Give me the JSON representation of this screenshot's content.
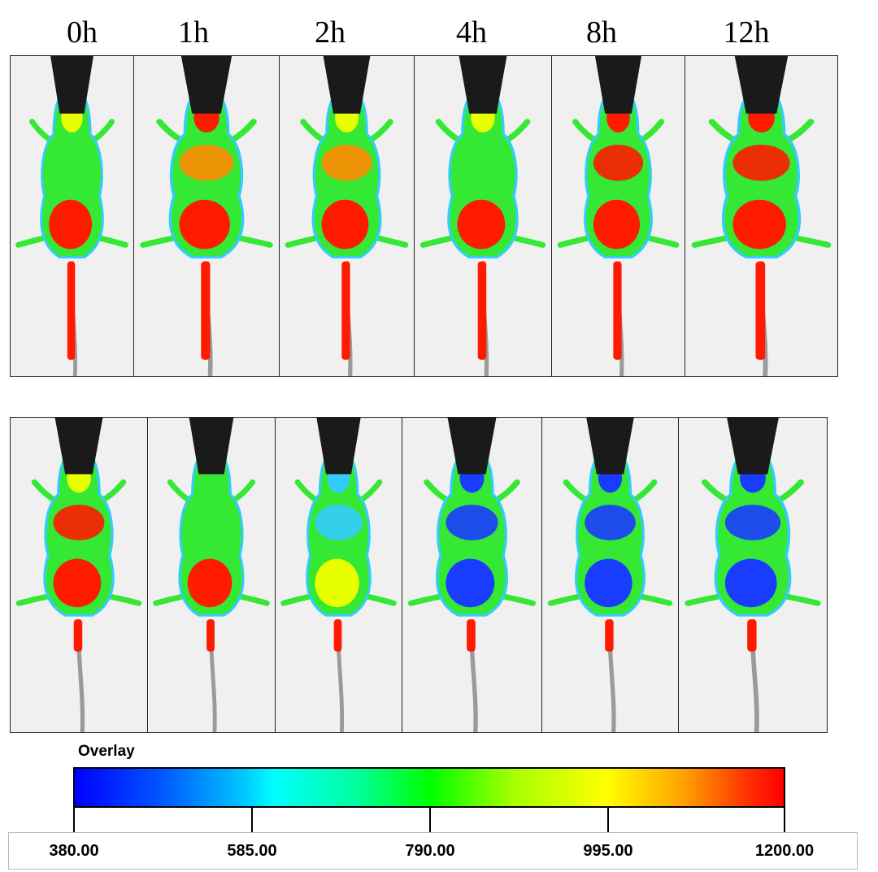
{
  "timepoints": [
    "0h",
    "1h",
    "2h",
    "4h",
    "8h",
    "12h"
  ],
  "overlay": {
    "title": "Overlay",
    "scale_labels": [
      "380.00",
      "585.00",
      "790.00",
      "995.00",
      "1200.00"
    ],
    "colormap": [
      "#0000ff",
      "#00ffff",
      "#00ff00",
      "#ffff00",
      "#ff0000"
    ]
  },
  "rows": [
    {
      "intensity": [
        {
          "head": "yellow",
          "chest": "green",
          "abdomen": "red",
          "tail": "red"
        },
        {
          "head": "red",
          "chest": "orange",
          "abdomen": "red",
          "tail": "red"
        },
        {
          "head": "yellow",
          "chest": "orange",
          "abdomen": "red",
          "tail": "red"
        },
        {
          "head": "yellow",
          "chest": "green",
          "abdomen": "red",
          "tail": "red"
        },
        {
          "head": "red",
          "chest": "red",
          "abdomen": "red",
          "tail": "red"
        },
        {
          "head": "red",
          "chest": "red",
          "abdomen": "red",
          "tail": "red"
        }
      ]
    },
    {
      "intensity": [
        {
          "head": "yellow",
          "chest": "red",
          "abdomen": "red",
          "tail": "red"
        },
        {
          "head": "green",
          "chest": "green",
          "abdomen": "red",
          "tail": "red"
        },
        {
          "head": "cyan",
          "chest": "cyan",
          "abdomen": "yellow",
          "tail": "red"
        },
        {
          "head": "blue",
          "chest": "blue",
          "abdomen": "blue",
          "tail": "red"
        },
        {
          "head": "blue",
          "chest": "blue",
          "abdomen": "blue",
          "tail": "red"
        },
        {
          "head": "blue",
          "chest": "blue",
          "abdomen": "blue",
          "tail": "red"
        }
      ]
    }
  ]
}
